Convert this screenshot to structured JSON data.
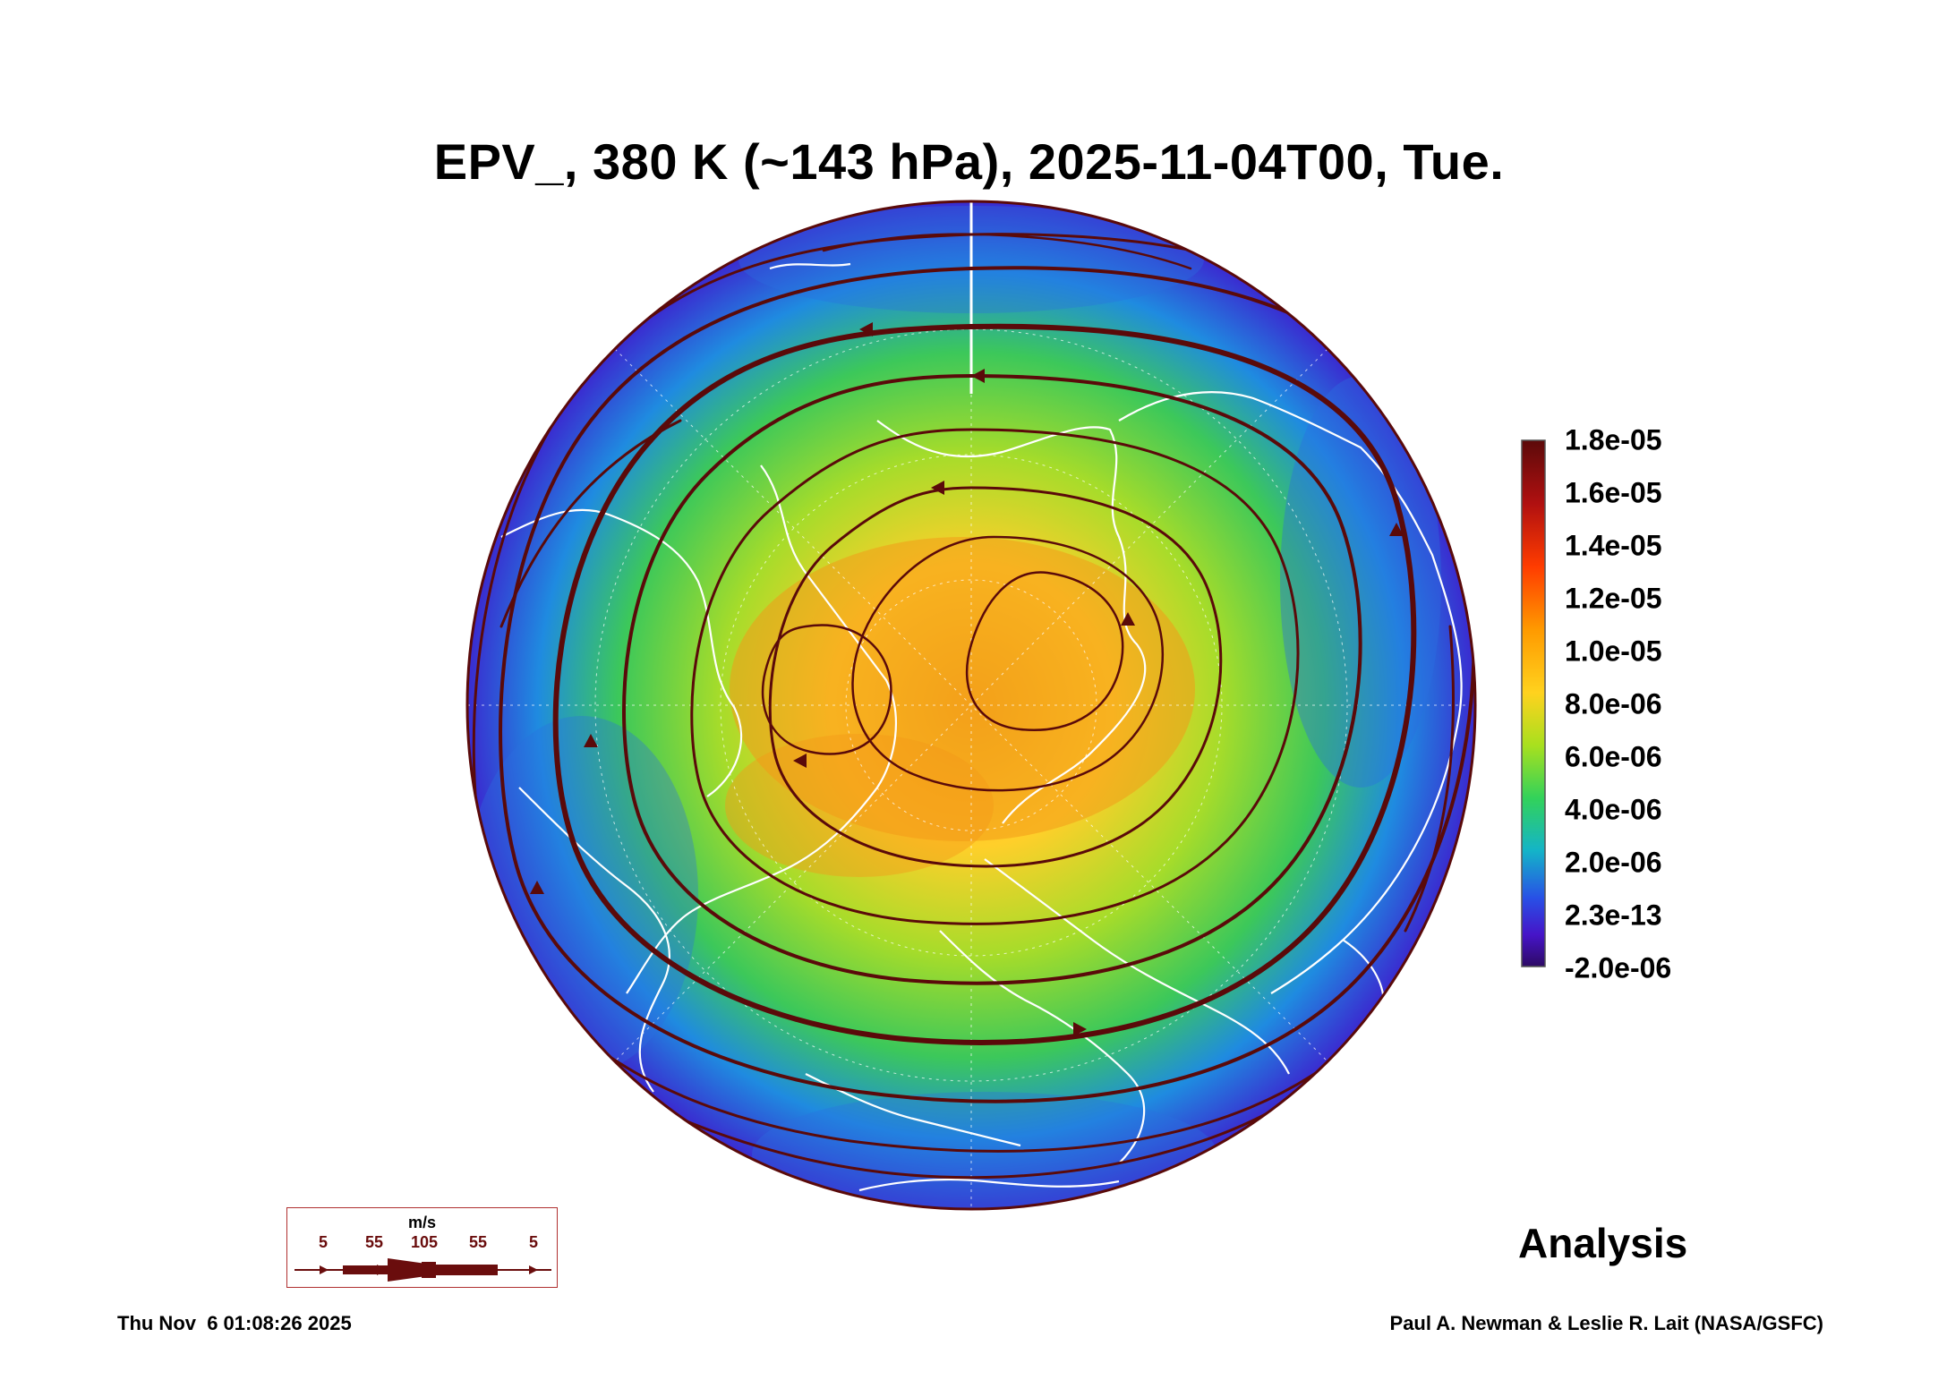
{
  "title": "EPV_, 380 K (~143 hPa), 2025-11-04T00, Tue.",
  "colorbar": {
    "labels": [
      "1.8e-05",
      "1.6e-05",
      "1.4e-05",
      "1.2e-05",
      "1.0e-05",
      "8.0e-06",
      "6.0e-06",
      "4.0e-06",
      "2.0e-06",
      "2.3e-13",
      "-2.0e-06"
    ],
    "colors": [
      "#5c0a0a",
      "#c81e0a",
      "#ff5a00",
      "#ffa000",
      "#ffd21e",
      "#a8e01e",
      "#32d25a",
      "#14a0dc",
      "#2850e6",
      "#4614c8",
      "#2d0a64"
    ]
  },
  "wind_legend": {
    "unit": "m/s",
    "speeds": [
      "5",
      "55",
      "105",
      "55",
      "5"
    ],
    "color": "#6a0d0d"
  },
  "analysis_label": "Analysis",
  "timestamp": "Thu Nov  6 01:08:26 2025",
  "credit": "Paul A. Newman & Leslie R. Lait (NASA/GSFC)",
  "map_colors": {
    "core": "#f4a71c",
    "inner": "#ffcf2a",
    "mid": "#a6dc2a",
    "outer": "#3cc85a",
    "edge": "#1f8be0",
    "rim": "#3a2bd0",
    "streamline": "#5a0a0a",
    "coast": "#ffffff"
  }
}
